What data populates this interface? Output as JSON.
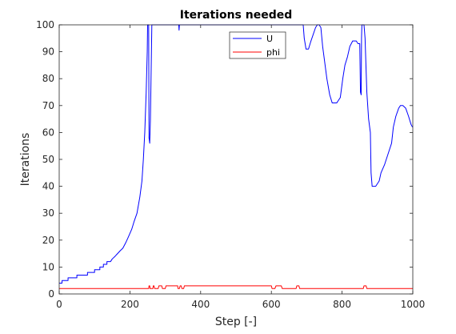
{
  "chart_data": {
    "type": "line",
    "title": "Iterations needed",
    "xlabel": "Step [-]",
    "ylabel": "Iterations",
    "xlim": [
      0,
      1000
    ],
    "ylim": [
      0,
      100
    ],
    "xticks": [
      0,
      200,
      400,
      600,
      800,
      1000
    ],
    "yticks": [
      0,
      10,
      20,
      30,
      40,
      50,
      60,
      70,
      80,
      90,
      100
    ],
    "grid": false,
    "legend_position": "top-center",
    "series": [
      {
        "name": "U",
        "color": "#0000ff",
        "points": [
          [
            0,
            4
          ],
          [
            8,
            4
          ],
          [
            8,
            5
          ],
          [
            25,
            5
          ],
          [
            25,
            6
          ],
          [
            50,
            6
          ],
          [
            50,
            7
          ],
          [
            80,
            7
          ],
          [
            80,
            8
          ],
          [
            100,
            8
          ],
          [
            100,
            9
          ],
          [
            115,
            9
          ],
          [
            115,
            10
          ],
          [
            125,
            10
          ],
          [
            125,
            11
          ],
          [
            135,
            11
          ],
          [
            135,
            12
          ],
          [
            145,
            12
          ],
          [
            150,
            13
          ],
          [
            158,
            14
          ],
          [
            165,
            15
          ],
          [
            172,
            16
          ],
          [
            180,
            17
          ],
          [
            188,
            19
          ],
          [
            195,
            21
          ],
          [
            205,
            24
          ],
          [
            212,
            27
          ],
          [
            220,
            30
          ],
          [
            228,
            36
          ],
          [
            234,
            42
          ],
          [
            238,
            50
          ],
          [
            242,
            60
          ],
          [
            246,
            75
          ],
          [
            249,
            90
          ],
          [
            250,
            100
          ],
          [
            253,
            100
          ],
          [
            254,
            58
          ],
          [
            256,
            56
          ],
          [
            258,
            65
          ],
          [
            262,
            100
          ],
          [
            300,
            100
          ],
          [
            338,
            100
          ],
          [
            339,
            98
          ],
          [
            340,
            100
          ],
          [
            600,
            100
          ],
          [
            640,
            100
          ],
          [
            690,
            100
          ],
          [
            693,
            95
          ],
          [
            698,
            91
          ],
          [
            705,
            91
          ],
          [
            712,
            94
          ],
          [
            725,
            99
          ],
          [
            730,
            100
          ],
          [
            735,
            100
          ],
          [
            740,
            99
          ],
          [
            745,
            92
          ],
          [
            750,
            87
          ],
          [
            757,
            80
          ],
          [
            765,
            74
          ],
          [
            772,
            71
          ],
          [
            785,
            71
          ],
          [
            795,
            73
          ],
          [
            802,
            80
          ],
          [
            808,
            85
          ],
          [
            815,
            88
          ],
          [
            822,
            92
          ],
          [
            830,
            94
          ],
          [
            840,
            94
          ],
          [
            845,
            93
          ],
          [
            850,
            93
          ],
          [
            852,
            75
          ],
          [
            854,
            74
          ],
          [
            855,
            95
          ],
          [
            856,
            100
          ],
          [
            862,
            100
          ],
          [
            865,
            95
          ],
          [
            870,
            75
          ],
          [
            875,
            65
          ],
          [
            880,
            60
          ],
          [
            882,
            45
          ],
          [
            885,
            40
          ],
          [
            895,
            40
          ],
          [
            905,
            42
          ],
          [
            910,
            45
          ],
          [
            920,
            48
          ],
          [
            930,
            52
          ],
          [
            940,
            56
          ],
          [
            945,
            62
          ],
          [
            952,
            66
          ],
          [
            960,
            69
          ],
          [
            965,
            70
          ],
          [
            972,
            70
          ],
          [
            980,
            69
          ],
          [
            988,
            66
          ],
          [
            995,
            63
          ],
          [
            999,
            62
          ]
        ]
      },
      {
        "name": "phi",
        "color": "#ff0000",
        "points": [
          [
            0,
            2
          ],
          [
            253,
            2
          ],
          [
            254,
            3
          ],
          [
            256,
            3
          ],
          [
            257,
            2
          ],
          [
            265,
            2
          ],
          [
            266,
            3
          ],
          [
            268,
            3
          ],
          [
            270,
            2
          ],
          [
            280,
            2
          ],
          [
            282,
            3
          ],
          [
            290,
            3
          ],
          [
            292,
            2
          ],
          [
            300,
            2
          ],
          [
            302,
            3
          ],
          [
            335,
            3
          ],
          [
            336,
            2
          ],
          [
            340,
            2
          ],
          [
            342,
            3
          ],
          [
            345,
            3
          ],
          [
            347,
            2
          ],
          [
            352,
            2
          ],
          [
            354,
            3
          ],
          [
            600,
            3
          ],
          [
            602,
            2
          ],
          [
            610,
            2
          ],
          [
            613,
            3
          ],
          [
            628,
            3
          ],
          [
            631,
            2
          ],
          [
            670,
            2
          ],
          [
            672,
            3
          ],
          [
            678,
            3
          ],
          [
            680,
            2
          ],
          [
            860,
            2
          ],
          [
            862,
            3
          ],
          [
            868,
            3
          ],
          [
            870,
            2
          ],
          [
            1000,
            2
          ]
        ]
      }
    ]
  }
}
